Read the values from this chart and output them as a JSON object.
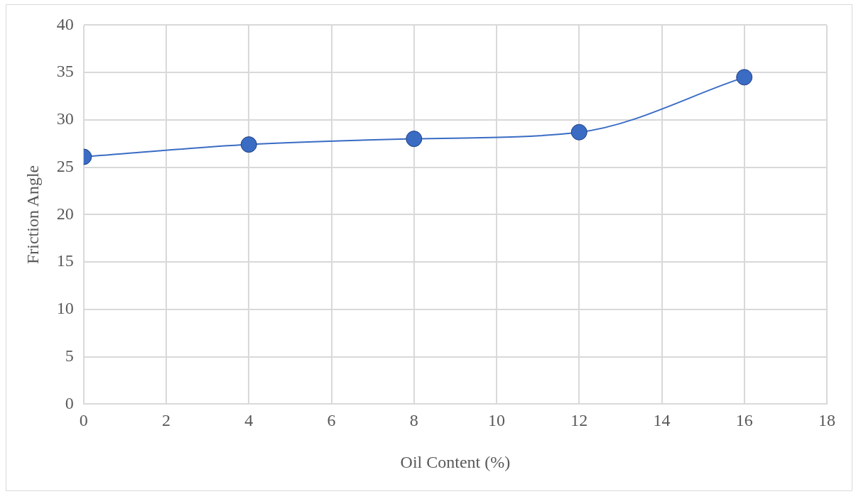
{
  "chart_data": {
    "type": "line",
    "xlabel": "Oil Content (%)",
    "ylabel": "Friction Angle",
    "x": [
      0,
      4,
      8,
      12,
      16
    ],
    "series": [
      {
        "color": "#3a6cc4",
        "values": [
          26.1,
          27.4,
          28.0,
          28.7,
          34.5
        ]
      }
    ],
    "xlim": [
      0,
      18
    ],
    "xticks": [
      0,
      2,
      4,
      6,
      8,
      10,
      12,
      14,
      16,
      18
    ],
    "ylim": [
      0,
      40
    ],
    "yticks": [
      0,
      5,
      10,
      15,
      20,
      25,
      30,
      35,
      40
    ],
    "grid": true,
    "legend": false,
    "marker": "circle",
    "line_style": "solid"
  }
}
